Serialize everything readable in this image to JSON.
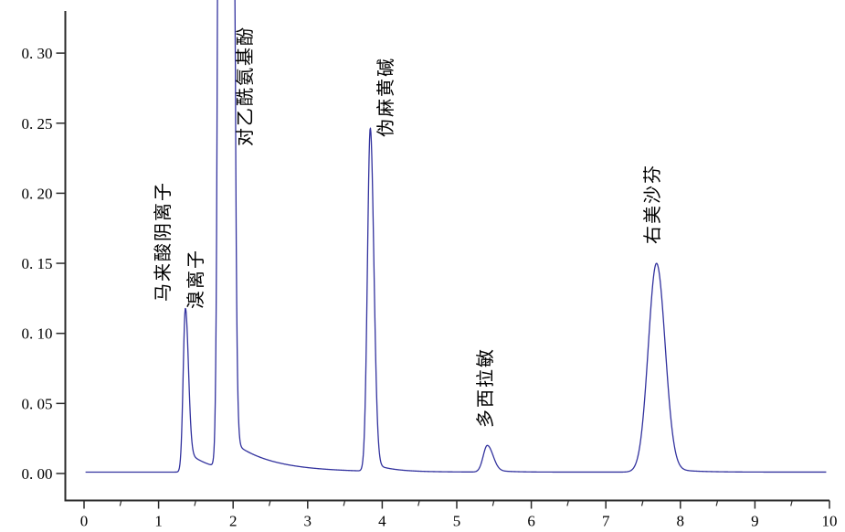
{
  "figure": {
    "background": "#ffffff",
    "trace_color": "#32329e",
    "axis_color": "#2a2a2a",
    "label_color": "#000000"
  },
  "chart_data": {
    "type": "line",
    "title": "",
    "xlabel": "",
    "ylabel": "",
    "xlim": [
      0,
      10
    ],
    "ylim": [
      -0.02,
      0.33
    ],
    "grid": false,
    "legend": false,
    "x_major_ticks": [
      0,
      1,
      2,
      3,
      4,
      5,
      6,
      7,
      8,
      9,
      10
    ],
    "x_tick_labels": [
      "0",
      "1",
      "2",
      "3",
      "4",
      "5",
      "6",
      "7",
      "8",
      "9",
      "10"
    ],
    "x_minor_ticks": [
      0.5,
      1.5,
      2.5,
      3.5,
      4.5,
      5.5,
      6.5,
      7.5,
      8.5,
      9.5
    ],
    "y_major_ticks": [
      0.0,
      0.05,
      0.1,
      0.15,
      0.2,
      0.25,
      0.3
    ],
    "y_tick_labels": [
      "0. 00",
      "0. 05",
      "0. 10",
      "0. 15",
      "0. 20",
      "0. 25",
      "0. 30"
    ],
    "baseline": 0.001,
    "clip_note": "peaks at rt 1.87 and 1.93 exceed the top of the axis (value > 0.33) and are clipped",
    "peaks": [
      {
        "label": "马来酸阴离子",
        "rt": 1.36,
        "height": 0.118,
        "off_scale": false,
        "draw_height": 0.117,
        "sigma_left": 0.03,
        "sigma_right": 0.04,
        "tail_height": 0.016,
        "tail_tau": 0.3,
        "label_x": 0.94,
        "label_y": 0.1226
      },
      {
        "label": "溴离子",
        "rt": 1.87,
        "height": null,
        "off_scale": true,
        "draw_height": 3.0,
        "sigma_left": 0.037,
        "sigma_right": 0.05,
        "tail_height": 0,
        "tail_tau": 1,
        "label_x": 1.385,
        "label_y": 0.1174
      },
      {
        "label": "对乙酰氨基酚",
        "rt": 1.93,
        "height": null,
        "off_scale": true,
        "draw_height": 3.0,
        "sigma_left": 0.05,
        "sigma_right": 0.045,
        "tail_height": 0.022,
        "tail_tau": 0.55,
        "label_x": 2.05,
        "label_y": 0.2335
      },
      {
        "label": "伪麻黄碱",
        "rt": 3.84,
        "height": 0.245,
        "off_scale": false,
        "draw_height": 0.245,
        "sigma_left": 0.038,
        "sigma_right": 0.048,
        "tail_height": 0.006,
        "tail_tau": 0.25,
        "label_x": 3.93,
        "label_y": 0.24
      },
      {
        "label": "多西拉敏",
        "rt": 5.41,
        "height": 0.019,
        "off_scale": false,
        "draw_height": 0.019,
        "sigma_left": 0.055,
        "sigma_right": 0.075,
        "tail_height": 0.002,
        "tail_tau": 0.2,
        "label_x": 5.27,
        "label_y": 0.0326
      },
      {
        "label": "右美沙芬",
        "rt": 7.68,
        "height": 0.15,
        "off_scale": false,
        "draw_height": 0.149,
        "sigma_left": 0.11,
        "sigma_right": 0.115,
        "tail_height": 0.004,
        "tail_tau": 0.3,
        "label_x": 7.512,
        "label_y": 0.164
      }
    ]
  }
}
